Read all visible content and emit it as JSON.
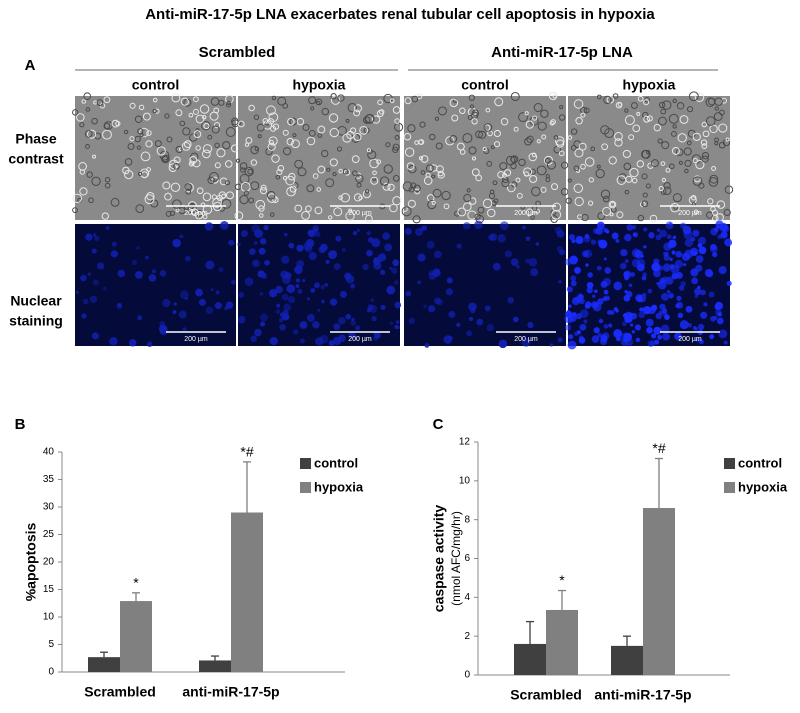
{
  "title": "Anti-miR-17-5p LNA exacerbates renal tubular cell apoptosis in hypoxia",
  "panel_a": {
    "label": "A",
    "groups": [
      "Scrambled",
      "Anti-miR-17-5p LNA"
    ],
    "columns": [
      "control",
      "hypoxia",
      "control",
      "hypoxia"
    ],
    "rows": [
      [
        "Phase",
        "contrast"
      ],
      [
        "Nuclear",
        "staining"
      ]
    ],
    "scale_bar": "200 µm"
  },
  "chart_data": [
    {
      "type": "bar",
      "label": "B",
      "ylabel": "%apoptosis",
      "categories": [
        "Scrambled",
        "anti-miR-17-5p"
      ],
      "series": [
        {
          "name": "control",
          "color": "#404040",
          "values": [
            2.7,
            2.1
          ],
          "errors": [
            0.9,
            0.8
          ]
        },
        {
          "name": "hypoxia",
          "color": "#808080",
          "values": [
            12.9,
            29.0
          ],
          "errors": [
            1.5,
            9.2
          ],
          "annotations": [
            "*",
            "*#"
          ]
        }
      ],
      "ylim": [
        0,
        40
      ],
      "yticks": [
        0,
        5,
        10,
        15,
        20,
        25,
        30,
        35,
        40
      ],
      "grid": false
    },
    {
      "type": "bar",
      "label": "C",
      "ylabel": [
        "caspase activity",
        "(nmol AFC/mg/hr)"
      ],
      "categories": [
        "Scrambled",
        "anti-miR-17-5p"
      ],
      "series": [
        {
          "name": "control",
          "color": "#404040",
          "values": [
            1.6,
            1.5
          ],
          "errors": [
            1.15,
            0.5
          ]
        },
        {
          "name": "hypoxia",
          "color": "#808080",
          "values": [
            3.35,
            8.6
          ],
          "errors": [
            1.0,
            2.55
          ],
          "annotations": [
            "*",
            "*#"
          ]
        }
      ],
      "ylim": [
        0,
        12
      ],
      "yticks": [
        0,
        2,
        4,
        6,
        8,
        10,
        12
      ],
      "grid": false
    }
  ]
}
